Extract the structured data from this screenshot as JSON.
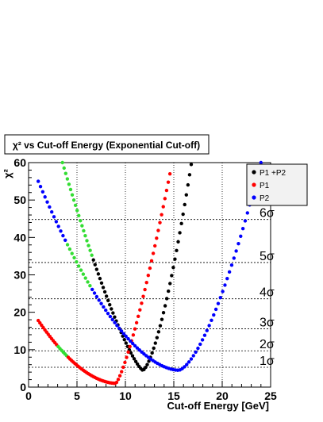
{
  "chart_data": {
    "type": "scatter",
    "title": "χ² vs Cut-off Energy (Exponential Cut-off)",
    "xlabel": "Cut-off Energy [GeV]",
    "ylabel": "χ²",
    "xlim": [
      0,
      25
    ],
    "ylim": [
      0,
      60
    ],
    "x_ticks": [
      0,
      5,
      10,
      15,
      20,
      25
    ],
    "y_ticks": [
      0,
      10,
      20,
      30,
      40,
      50,
      60
    ],
    "grid": "vertical dotted at major x ticks",
    "legend_placement": "top-right",
    "series": [
      {
        "name": "P1 +P2",
        "color": "#000000",
        "curve": {
          "x_min": 11.8,
          "y_min": 4.5,
          "left_x0": 3.5,
          "left_y0": 60.0,
          "left_power": 1.3,
          "right_x_end": 16.8,
          "right_y_end": 59.5,
          "right_power": 1.5,
          "x_start": 3.5,
          "x_end": 16.8,
          "n_points": 80
        },
        "highlight": [
          {
            "x_from": 3.5,
            "x_to": 6.6,
            "color": "#33dd33"
          }
        ]
      },
      {
        "name": "P1",
        "color": "#ff0000",
        "curve": {
          "x_min": 9.0,
          "y_min": 1.0,
          "left_x0": 1.0,
          "left_y0": 17.8,
          "left_power": 1.8,
          "right_x_end": 14.6,
          "right_y_end": 57.0,
          "right_power": 1.3,
          "x_start": 1.0,
          "x_end": 14.6,
          "n_points": 80
        },
        "highlight": [
          {
            "x_from": 3.0,
            "x_to": 4.0,
            "color": "#33dd33"
          }
        ]
      },
      {
        "name": "P2",
        "color": "#0000ff",
        "curve": {
          "x_min": 15.5,
          "y_min": 4.5,
          "left_x0": 1.0,
          "left_y0": 55.0,
          "left_power": 1.75,
          "right_x_end": 24.0,
          "right_y_end": 60.0,
          "right_power": 1.55,
          "x_start": 1.0,
          "x_end": 24.0,
          "n_points": 100
        },
        "highlight": [
          {
            "x_from": 3.9,
            "x_to": 6.5,
            "color": "#33dd33"
          }
        ]
      }
    ],
    "sigma_levels": [
      {
        "label": "1",
        "value": 5.3
      },
      {
        "label": "2",
        "value": 9.7
      },
      {
        "label": "3",
        "value": 15.6
      },
      {
        "label": "4",
        "value": 23.6
      },
      {
        "label": "5",
        "value": 33.3
      },
      {
        "label": "6",
        "value": 44.8
      }
    ],
    "sigma_symbol": "σ"
  }
}
